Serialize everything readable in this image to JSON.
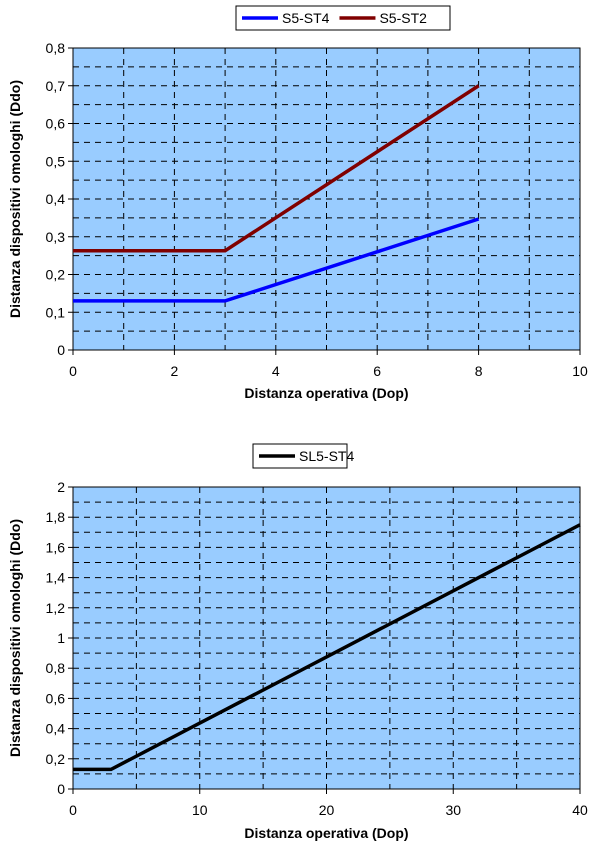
{
  "chart_data": [
    {
      "type": "line",
      "xlabel": "Distanza operativa (Dop)",
      "ylabel": "Distanza dispositivi omologhi (Ddo)",
      "xlim": [
        0,
        10
      ],
      "ylim": [
        0,
        0.8
      ],
      "xticks": [
        0,
        2,
        4,
        6,
        8,
        10
      ],
      "yticks": [
        0,
        0.1,
        0.2,
        0.3,
        0.4,
        0.5,
        0.6,
        0.7,
        0.8
      ],
      "xtick_labels": [
        "0",
        "2",
        "4",
        "6",
        "8",
        "10"
      ],
      "ytick_labels": [
        "0",
        "0,1",
        "0,2",
        "0,3",
        "0,4",
        "0,5",
        "0,6",
        "0,7",
        "0,8"
      ],
      "grid": true,
      "legend_position": "top-center",
      "background_color": "#99ccff",
      "series": [
        {
          "name": "S5-ST4",
          "color": "#0000ff",
          "x": [
            0,
            3,
            8
          ],
          "y": [
            0.13,
            0.13,
            0.347
          ]
        },
        {
          "name": "S5-ST2",
          "color": "#800000",
          "x": [
            0,
            3,
            8
          ],
          "y": [
            0.263,
            0.263,
            0.7
          ]
        }
      ]
    },
    {
      "type": "line",
      "xlabel": "Distanza operativa (Dop)",
      "ylabel": "Distanza dispositivi omologhi (Ddo)",
      "xlim": [
        0,
        40
      ],
      "ylim": [
        0,
        2
      ],
      "xticks": [
        0,
        10,
        20,
        30,
        40
      ],
      "yticks": [
        0,
        0.2,
        0.4,
        0.6,
        0.8,
        1,
        1.2,
        1.4,
        1.6,
        1.8,
        2
      ],
      "xtick_labels": [
        "0",
        "10",
        "20",
        "30",
        "40"
      ],
      "ytick_labels": [
        "0",
        "0,2",
        "0,4",
        "0,6",
        "0,8",
        "1",
        "1,2",
        "1,4",
        "1,6",
        "1,8",
        "2"
      ],
      "grid": true,
      "legend_position": "top-center",
      "background_color": "#99ccff",
      "series": [
        {
          "name": "SL5-ST4",
          "color": "#000000",
          "x": [
            0,
            3,
            40
          ],
          "y": [
            0.13,
            0.13,
            1.75
          ]
        }
      ]
    }
  ]
}
